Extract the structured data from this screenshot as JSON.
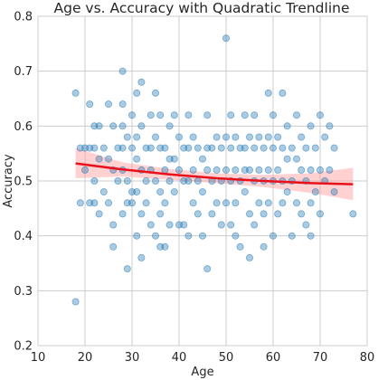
{
  "chart_data": {
    "type": "scatter",
    "title": "Age vs. Accuracy with Quadratic Trendline",
    "xlabel": "Age",
    "ylabel": "Accuracy",
    "xlim": [
      10,
      80
    ],
    "ylim": [
      0.2,
      0.8
    ],
    "x_ticks": [
      "10",
      "20",
      "30",
      "40",
      "50",
      "60",
      "70",
      "80"
    ],
    "y_ticks": [
      "0.2",
      "0.3",
      "0.4",
      "0.5",
      "0.6",
      "0.7",
      "0.8"
    ],
    "grid": true,
    "colors": {
      "points": "#1f77b4",
      "trendline": "#e8111c",
      "confidence_band": "#ff9999"
    },
    "points": [
      [
        18,
        0.66
      ],
      [
        18,
        0.28
      ],
      [
        19,
        0.56
      ],
      [
        19,
        0.46
      ],
      [
        20,
        0.56
      ],
      [
        20,
        0.52
      ],
      [
        21,
        0.64
      ],
      [
        21,
        0.56
      ],
      [
        21,
        0.46
      ],
      [
        22,
        0.6
      ],
      [
        22,
        0.56
      ],
      [
        22,
        0.5
      ],
      [
        22,
        0.46
      ],
      [
        23,
        0.6
      ],
      [
        23,
        0.54
      ],
      [
        23,
        0.44
      ],
      [
        24,
        0.56
      ],
      [
        24,
        0.48
      ],
      [
        25,
        0.64
      ],
      [
        25,
        0.54
      ],
      [
        25,
        0.46
      ],
      [
        26,
        0.6
      ],
      [
        26,
        0.52
      ],
      [
        26,
        0.42
      ],
      [
        26,
        0.38
      ],
      [
        27,
        0.56
      ],
      [
        27,
        0.5
      ],
      [
        28,
        0.7
      ],
      [
        28,
        0.64
      ],
      [
        28,
        0.6
      ],
      [
        28,
        0.56
      ],
      [
        28,
        0.52
      ],
      [
        28,
        0.44
      ],
      [
        29,
        0.58
      ],
      [
        29,
        0.5
      ],
      [
        29,
        0.46
      ],
      [
        29,
        0.34
      ],
      [
        30,
        0.62
      ],
      [
        30,
        0.56
      ],
      [
        30,
        0.48
      ],
      [
        30,
        0.46
      ],
      [
        31,
        0.66
      ],
      [
        31,
        0.58
      ],
      [
        31,
        0.54
      ],
      [
        31,
        0.48
      ],
      [
        31,
        0.4
      ],
      [
        32,
        0.68
      ],
      [
        32,
        0.6
      ],
      [
        32,
        0.52
      ],
      [
        32,
        0.44
      ],
      [
        32,
        0.36
      ],
      [
        33,
        0.56
      ],
      [
        33,
        0.5
      ],
      [
        33,
        0.46
      ],
      [
        34,
        0.62
      ],
      [
        34,
        0.56
      ],
      [
        34,
        0.52
      ],
      [
        34,
        0.42
      ],
      [
        35,
        0.66
      ],
      [
        35,
        0.58
      ],
      [
        35,
        0.5
      ],
      [
        35,
        0.4
      ],
      [
        36,
        0.62
      ],
      [
        36,
        0.56
      ],
      [
        36,
        0.48
      ],
      [
        36,
        0.44
      ],
      [
        36,
        0.38
      ],
      [
        37,
        0.56
      ],
      [
        37,
        0.52
      ],
      [
        37,
        0.46
      ],
      [
        37,
        0.38
      ],
      [
        38,
        0.6
      ],
      [
        38,
        0.54
      ],
      [
        38,
        0.5
      ],
      [
        38,
        0.42
      ],
      [
        39,
        0.62
      ],
      [
        39,
        0.54
      ],
      [
        39,
        0.48
      ],
      [
        40,
        0.58
      ],
      [
        40,
        0.52
      ],
      [
        40,
        0.42
      ],
      [
        41,
        0.56
      ],
      [
        41,
        0.5
      ],
      [
        41,
        0.42
      ],
      [
        42,
        0.62
      ],
      [
        42,
        0.56
      ],
      [
        42,
        0.5
      ],
      [
        42,
        0.4
      ],
      [
        43,
        0.58
      ],
      [
        43,
        0.52
      ],
      [
        43,
        0.46
      ],
      [
        44,
        0.56
      ],
      [
        44,
        0.5
      ],
      [
        44,
        0.44
      ],
      [
        45,
        0.54
      ],
      [
        45,
        0.48
      ],
      [
        45,
        0.4
      ],
      [
        46,
        0.62
      ],
      [
        46,
        0.56
      ],
      [
        46,
        0.52
      ],
      [
        46,
        0.34
      ],
      [
        47,
        0.56
      ],
      [
        47,
        0.5
      ],
      [
        47,
        0.44
      ],
      [
        48,
        0.58
      ],
      [
        48,
        0.52
      ],
      [
        48,
        0.46
      ],
      [
        49,
        0.56
      ],
      [
        49,
        0.5
      ],
      [
        49,
        0.42
      ],
      [
        50,
        0.76
      ],
      [
        50,
        0.58
      ],
      [
        50,
        0.52
      ],
      [
        50,
        0.46
      ],
      [
        51,
        0.62
      ],
      [
        51,
        0.56
      ],
      [
        51,
        0.5
      ],
      [
        51,
        0.42
      ],
      [
        52,
        0.58
      ],
      [
        52,
        0.52
      ],
      [
        52,
        0.46
      ],
      [
        52,
        0.4
      ],
      [
        53,
        0.56
      ],
      [
        53,
        0.5
      ],
      [
        53,
        0.38
      ],
      [
        54,
        0.62
      ],
      [
        54,
        0.56
      ],
      [
        54,
        0.52
      ],
      [
        54,
        0.48
      ],
      [
        55,
        0.58
      ],
      [
        55,
        0.52
      ],
      [
        55,
        0.44
      ],
      [
        55,
        0.36
      ],
      [
        56,
        0.62
      ],
      [
        56,
        0.56
      ],
      [
        56,
        0.5
      ],
      [
        56,
        0.42
      ],
      [
        57,
        0.58
      ],
      [
        57,
        0.52
      ],
      [
        57,
        0.46
      ],
      [
        58,
        0.56
      ],
      [
        58,
        0.5
      ],
      [
        58,
        0.44
      ],
      [
        58,
        0.38
      ],
      [
        59,
        0.66
      ],
      [
        59,
        0.58
      ],
      [
        59,
        0.52
      ],
      [
        59,
        0.46
      ],
      [
        60,
        0.62
      ],
      [
        60,
        0.56
      ],
      [
        60,
        0.5
      ],
      [
        60,
        0.4
      ],
      [
        61,
        0.58
      ],
      [
        61,
        0.52
      ],
      [
        61,
        0.44
      ],
      [
        62,
        0.66
      ],
      [
        62,
        0.56
      ],
      [
        62,
        0.5
      ],
      [
        62,
        0.46
      ],
      [
        63,
        0.6
      ],
      [
        63,
        0.54
      ],
      [
        63,
        0.48
      ],
      [
        64,
        0.56
      ],
      [
        64,
        0.5
      ],
      [
        64,
        0.4
      ],
      [
        65,
        0.62
      ],
      [
        65,
        0.54
      ],
      [
        65,
        0.46
      ],
      [
        66,
        0.58
      ],
      [
        66,
        0.52
      ],
      [
        66,
        0.44
      ],
      [
        67,
        0.56
      ],
      [
        67,
        0.5
      ],
      [
        67,
        0.42
      ],
      [
        68,
        0.6
      ],
      [
        68,
        0.52
      ],
      [
        68,
        0.46
      ],
      [
        68,
        0.4
      ],
      [
        69,
        0.56
      ],
      [
        69,
        0.48
      ],
      [
        70,
        0.62
      ],
      [
        70,
        0.52
      ],
      [
        70,
        0.44
      ],
      [
        71,
        0.58
      ],
      [
        71,
        0.5
      ],
      [
        72,
        0.6
      ],
      [
        72,
        0.52
      ],
      [
        73,
        0.56
      ],
      [
        73,
        0.48
      ],
      [
        77,
        0.44
      ]
    ],
    "trendline": {
      "type": "quadratic",
      "x": [
        18,
        28,
        38,
        48,
        58,
        68,
        77
      ],
      "y": [
        0.532,
        0.521,
        0.512,
        0.505,
        0.5,
        0.496,
        0.494
      ],
      "ci_lower": [
        0.505,
        0.508,
        0.502,
        0.496,
        0.489,
        0.478,
        0.465
      ],
      "ci_upper": [
        0.56,
        0.534,
        0.522,
        0.514,
        0.511,
        0.514,
        0.524
      ]
    }
  }
}
